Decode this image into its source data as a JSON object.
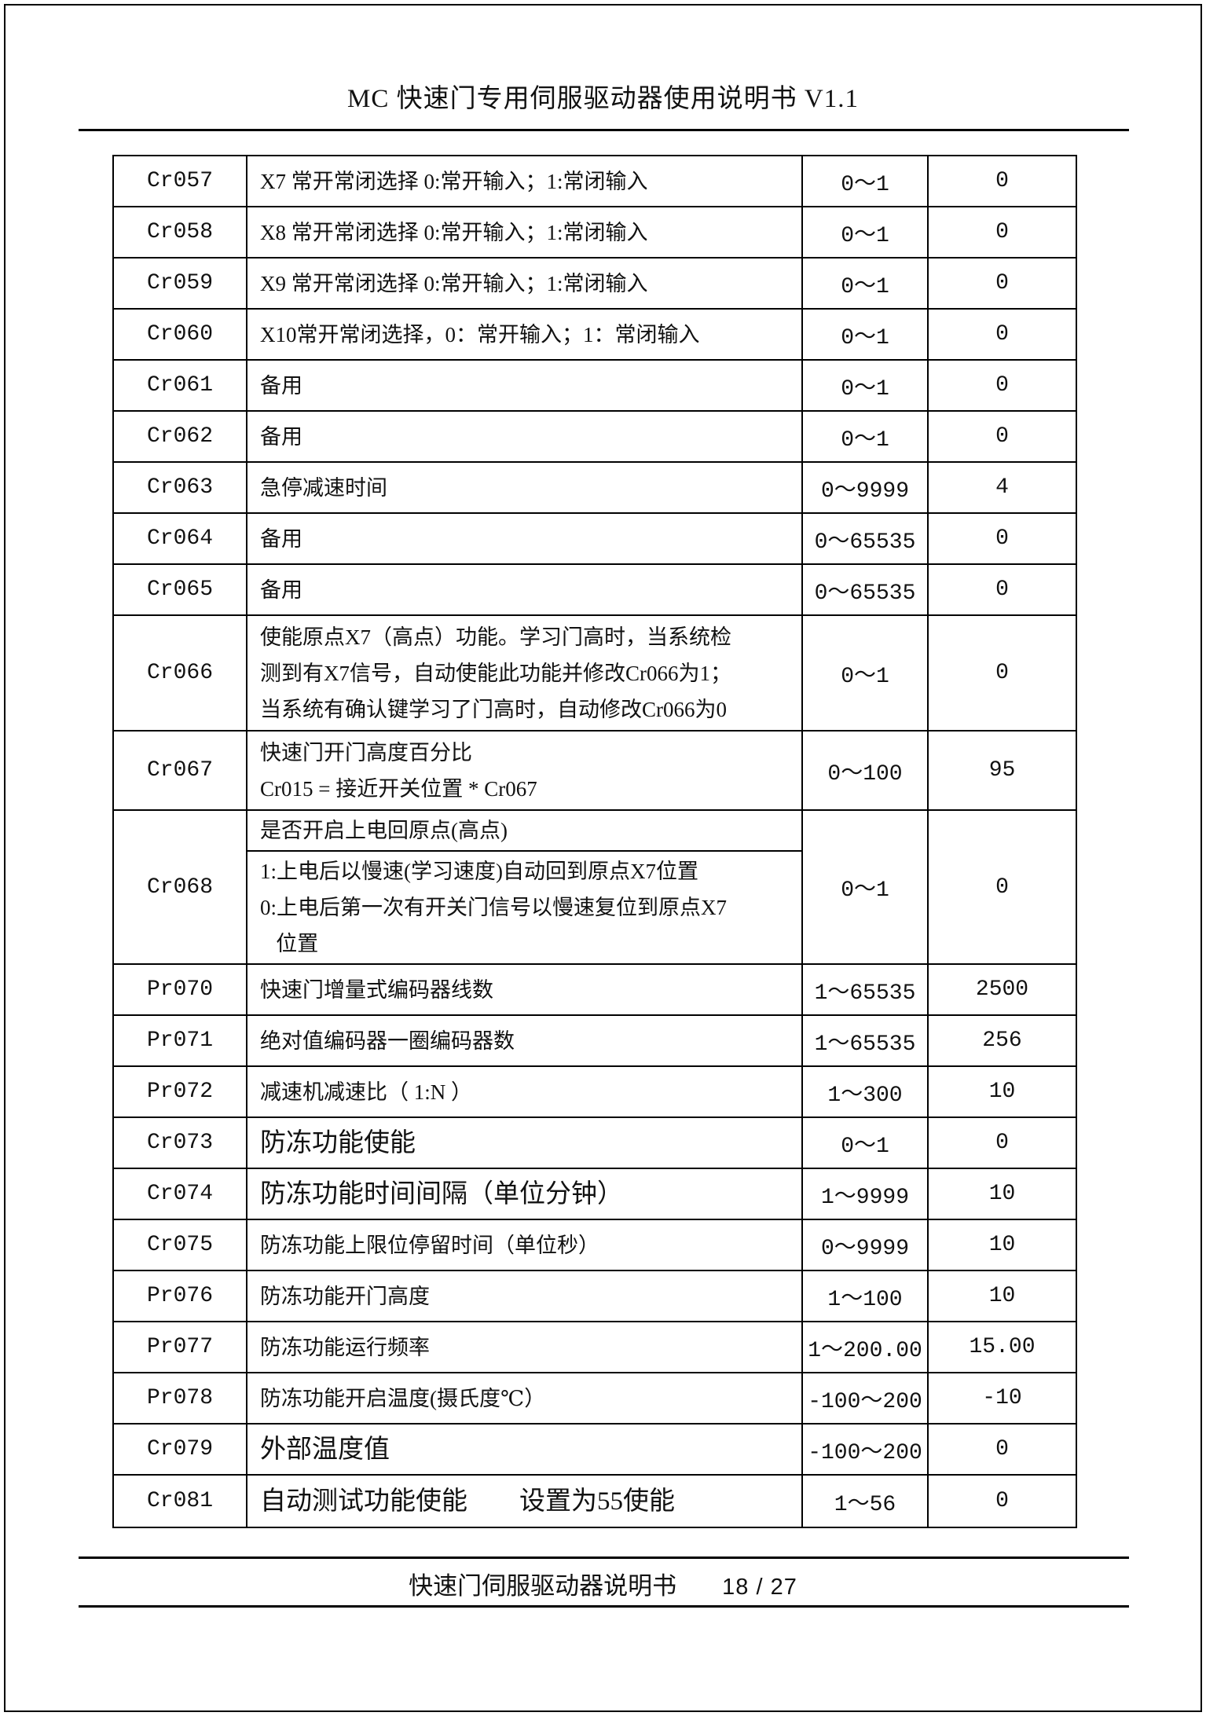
{
  "page": {
    "header_title": "MC 快速门专用伺服驱动器使用说明书 V1.1",
    "footer_doc_name": "快速门伺服驱动器说明书",
    "footer_page_number": "18 / 27",
    "ink_color": "#111111",
    "background_color": "#ffffff"
  },
  "table": {
    "rows": [
      {
        "code": "Cr057",
        "desc": "X7 常开常闭选择 0:常开输入；1:常闭输入",
        "range": "0～1",
        "default": "0"
      },
      {
        "code": "Cr058",
        "desc": "X8 常开常闭选择 0:常开输入；1:常闭输入",
        "range": "0～1",
        "default": "0"
      },
      {
        "code": "Cr059",
        "desc": "X9 常开常闭选择 0:常开输入；1:常闭输入",
        "range": "0～1",
        "default": "0"
      },
      {
        "code": "Cr060",
        "desc": "X10常开常闭选择，0：常开输入；1：常闭输入",
        "range": "0～1",
        "default": "0"
      },
      {
        "code": "Cr061",
        "desc": "备用",
        "range": "0～1",
        "default": "0"
      },
      {
        "code": "Cr062",
        "desc": "备用",
        "range": "0～1",
        "default": "0"
      },
      {
        "code": "Cr063",
        "desc": "急停减速时间",
        "range": "0～9999",
        "default": "4"
      },
      {
        "code": "Cr064",
        "desc": "备用",
        "range": "0～65535",
        "default": "0"
      },
      {
        "code": "Cr065",
        "desc": "备用",
        "range": "0～65535",
        "default": "0"
      },
      {
        "code": "Cr066",
        "desc": "使能原点X7（高点）功能。学习门高时，当系统检\n测到有X7信号，自动使能此功能并修改Cr066为1；\n当系统有确认键学习了门高时，自动修改Cr066为0",
        "range": "0～1",
        "default": "0"
      },
      {
        "code": "Cr067",
        "desc": "快速门开门高度百分比\nCr015 = 接近开关位置 * Cr067",
        "range": "0～100",
        "default": "95"
      },
      {
        "code": "Cr068",
        "split": {
          "top": "是否开启上电回原点(高点)",
          "bottom": "1:上电后以慢速(学习速度)自动回到原点X7位置\n0:上电后第一次有开关门信号以慢速复位到原点X7\n   位置"
        },
        "range": "0～1",
        "default": "0"
      },
      {
        "code": "Pr070",
        "desc": "快速门增量式编码器线数",
        "range": "1～65535",
        "default": "2500"
      },
      {
        "code": "Pr071",
        "desc": "绝对值编码器一圈编码器数",
        "range": "1～65535",
        "default": "256"
      },
      {
        "code": "Pr072",
        "desc": "减速机减速比（ 1:N ）",
        "range": "1～300",
        "default": "10"
      },
      {
        "code": "Cr073",
        "desc": "防冻功能使能",
        "range": "0～1",
        "default": "0"
      },
      {
        "code": "Cr074",
        "desc": "防冻功能时间间隔（单位分钟）",
        "range": "1～9999",
        "default": "10"
      },
      {
        "code": "Cr075",
        "desc": "防冻功能上限位停留时间（单位秒）",
        "range": "0～9999",
        "default": "10"
      },
      {
        "code": "Pr076",
        "desc": "防冻功能开门高度",
        "range": "1～100",
        "default": "10"
      },
      {
        "code": "Pr077",
        "desc": "防冻功能运行频率",
        "range": "1～200.00",
        "default": "15.00"
      },
      {
        "code": "Pr078",
        "desc": "防冻功能开启温度(摄氏度℃）",
        "range": "-100～200",
        "default": "-10"
      },
      {
        "code": "Cr079",
        "desc": "外部温度值",
        "range": "-100～200",
        "default": "0"
      },
      {
        "code": "Cr081",
        "desc": "自动测试功能使能　　设置为55使能",
        "range": "1～56",
        "default": "0"
      }
    ]
  }
}
